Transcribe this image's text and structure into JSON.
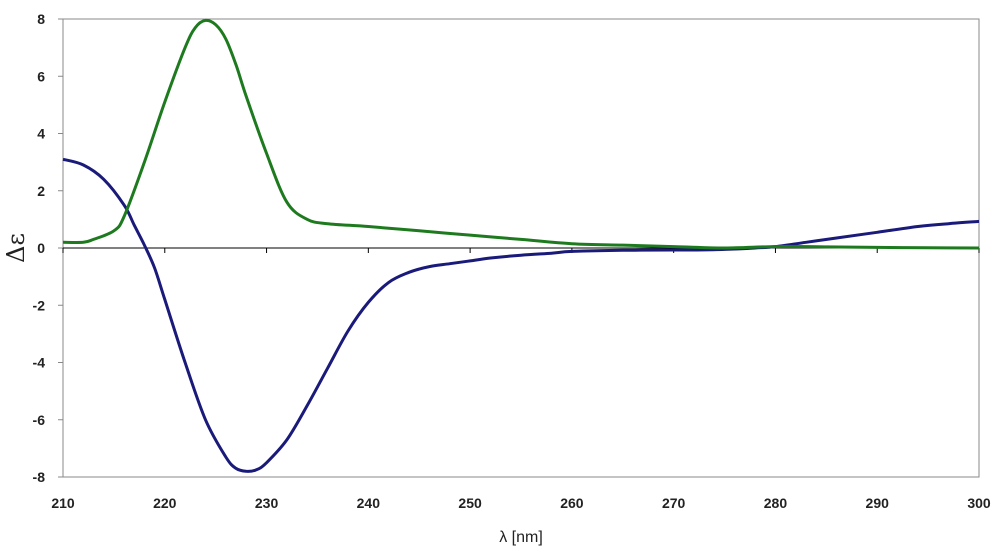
{
  "chart_data": {
    "type": "line",
    "title": "",
    "xlabel": "λ [nm]",
    "ylabel": "Δε",
    "xlim": [
      210,
      300
    ],
    "ylim": [
      -8,
      8
    ],
    "xticks": [
      210,
      220,
      230,
      240,
      250,
      260,
      270,
      280,
      290,
      300
    ],
    "yticks": [
      -8,
      -6,
      -4,
      -2,
      0,
      2,
      4,
      6,
      8
    ],
    "grid": false,
    "legend": "none",
    "series": [
      {
        "color": "#1a1a7a",
        "x": [
          210,
          212,
          214,
          216,
          217,
          218,
          219,
          220,
          222,
          224,
          226,
          227,
          228,
          229,
          230,
          232,
          234,
          236,
          238,
          240,
          242,
          244,
          246,
          248,
          250,
          252,
          255,
          258,
          260,
          265,
          270,
          272,
          275,
          278,
          280,
          283,
          286,
          290,
          294,
          297,
          300
        ],
        "y": [
          3.1,
          2.9,
          2.4,
          1.5,
          0.8,
          0.1,
          -0.7,
          -1.8,
          -4.0,
          -6.0,
          -7.3,
          -7.7,
          -7.8,
          -7.75,
          -7.5,
          -6.7,
          -5.5,
          -4.2,
          -2.9,
          -1.9,
          -1.2,
          -0.85,
          -0.65,
          -0.55,
          -0.45,
          -0.35,
          -0.25,
          -0.18,
          -0.12,
          -0.08,
          -0.07,
          -0.07,
          -0.05,
          0.0,
          0.05,
          0.2,
          0.35,
          0.55,
          0.75,
          0.85,
          0.93
        ]
      },
      {
        "color": "#1e7a1e",
        "x": [
          210,
          212,
          213,
          215,
          216,
          218,
          220,
          222,
          223,
          224,
          225,
          226,
          227,
          228,
          230,
          232,
          234,
          236,
          240,
          245,
          250,
          255,
          260,
          265,
          270,
          275,
          280,
          285,
          290,
          295,
          300
        ],
        "y": [
          0.2,
          0.2,
          0.3,
          0.6,
          1.1,
          3.0,
          5.1,
          7.0,
          7.7,
          7.95,
          7.8,
          7.3,
          6.4,
          5.3,
          3.3,
          1.6,
          1.0,
          0.85,
          0.75,
          0.6,
          0.45,
          0.3,
          0.15,
          0.1,
          0.05,
          0.0,
          0.05,
          0.04,
          0.02,
          0.01,
          0.0
        ]
      }
    ]
  }
}
